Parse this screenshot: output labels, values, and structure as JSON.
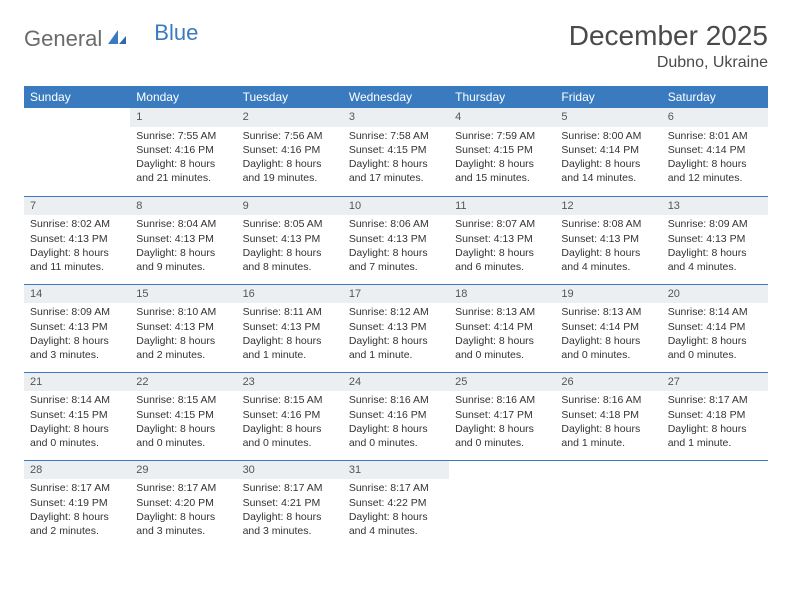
{
  "logo": {
    "part1": "General",
    "part2": "Blue"
  },
  "title": "December 2025",
  "location": "Dubno, Ukraine",
  "colors": {
    "header_bg": "#3a7bbf",
    "header_text": "#ffffff",
    "daynum_bg": "#eceff1",
    "row_border": "#3a7bbf",
    "page_bg": "#ffffff",
    "logo_gray": "#6b6b6b",
    "logo_blue": "#3a7bbf"
  },
  "weekdays": [
    "Sunday",
    "Monday",
    "Tuesday",
    "Wednesday",
    "Thursday",
    "Friday",
    "Saturday"
  ],
  "weeks": [
    [
      null,
      {
        "n": "1",
        "sr": "7:55 AM",
        "ss": "4:16 PM",
        "dl": "8 hours and 21 minutes."
      },
      {
        "n": "2",
        "sr": "7:56 AM",
        "ss": "4:16 PM",
        "dl": "8 hours and 19 minutes."
      },
      {
        "n": "3",
        "sr": "7:58 AM",
        "ss": "4:15 PM",
        "dl": "8 hours and 17 minutes."
      },
      {
        "n": "4",
        "sr": "7:59 AM",
        "ss": "4:15 PM",
        "dl": "8 hours and 15 minutes."
      },
      {
        "n": "5",
        "sr": "8:00 AM",
        "ss": "4:14 PM",
        "dl": "8 hours and 14 minutes."
      },
      {
        "n": "6",
        "sr": "8:01 AM",
        "ss": "4:14 PM",
        "dl": "8 hours and 12 minutes."
      }
    ],
    [
      {
        "n": "7",
        "sr": "8:02 AM",
        "ss": "4:13 PM",
        "dl": "8 hours and 11 minutes."
      },
      {
        "n": "8",
        "sr": "8:04 AM",
        "ss": "4:13 PM",
        "dl": "8 hours and 9 minutes."
      },
      {
        "n": "9",
        "sr": "8:05 AM",
        "ss": "4:13 PM",
        "dl": "8 hours and 8 minutes."
      },
      {
        "n": "10",
        "sr": "8:06 AM",
        "ss": "4:13 PM",
        "dl": "8 hours and 7 minutes."
      },
      {
        "n": "11",
        "sr": "8:07 AM",
        "ss": "4:13 PM",
        "dl": "8 hours and 6 minutes."
      },
      {
        "n": "12",
        "sr": "8:08 AM",
        "ss": "4:13 PM",
        "dl": "8 hours and 4 minutes."
      },
      {
        "n": "13",
        "sr": "8:09 AM",
        "ss": "4:13 PM",
        "dl": "8 hours and 4 minutes."
      }
    ],
    [
      {
        "n": "14",
        "sr": "8:09 AM",
        "ss": "4:13 PM",
        "dl": "8 hours and 3 minutes."
      },
      {
        "n": "15",
        "sr": "8:10 AM",
        "ss": "4:13 PM",
        "dl": "8 hours and 2 minutes."
      },
      {
        "n": "16",
        "sr": "8:11 AM",
        "ss": "4:13 PM",
        "dl": "8 hours and 1 minute."
      },
      {
        "n": "17",
        "sr": "8:12 AM",
        "ss": "4:13 PM",
        "dl": "8 hours and 1 minute."
      },
      {
        "n": "18",
        "sr": "8:13 AM",
        "ss": "4:14 PM",
        "dl": "8 hours and 0 minutes."
      },
      {
        "n": "19",
        "sr": "8:13 AM",
        "ss": "4:14 PM",
        "dl": "8 hours and 0 minutes."
      },
      {
        "n": "20",
        "sr": "8:14 AM",
        "ss": "4:14 PM",
        "dl": "8 hours and 0 minutes."
      }
    ],
    [
      {
        "n": "21",
        "sr": "8:14 AM",
        "ss": "4:15 PM",
        "dl": "8 hours and 0 minutes."
      },
      {
        "n": "22",
        "sr": "8:15 AM",
        "ss": "4:15 PM",
        "dl": "8 hours and 0 minutes."
      },
      {
        "n": "23",
        "sr": "8:15 AM",
        "ss": "4:16 PM",
        "dl": "8 hours and 0 minutes."
      },
      {
        "n": "24",
        "sr": "8:16 AM",
        "ss": "4:16 PM",
        "dl": "8 hours and 0 minutes."
      },
      {
        "n": "25",
        "sr": "8:16 AM",
        "ss": "4:17 PM",
        "dl": "8 hours and 0 minutes."
      },
      {
        "n": "26",
        "sr": "8:16 AM",
        "ss": "4:18 PM",
        "dl": "8 hours and 1 minute."
      },
      {
        "n": "27",
        "sr": "8:17 AM",
        "ss": "4:18 PM",
        "dl": "8 hours and 1 minute."
      }
    ],
    [
      {
        "n": "28",
        "sr": "8:17 AM",
        "ss": "4:19 PM",
        "dl": "8 hours and 2 minutes."
      },
      {
        "n": "29",
        "sr": "8:17 AM",
        "ss": "4:20 PM",
        "dl": "8 hours and 3 minutes."
      },
      {
        "n": "30",
        "sr": "8:17 AM",
        "ss": "4:21 PM",
        "dl": "8 hours and 3 minutes."
      },
      {
        "n": "31",
        "sr": "8:17 AM",
        "ss": "4:22 PM",
        "dl": "8 hours and 4 minutes."
      },
      null,
      null,
      null
    ]
  ],
  "labels": {
    "sunrise": "Sunrise:",
    "sunset": "Sunset:",
    "daylight": "Daylight:"
  }
}
